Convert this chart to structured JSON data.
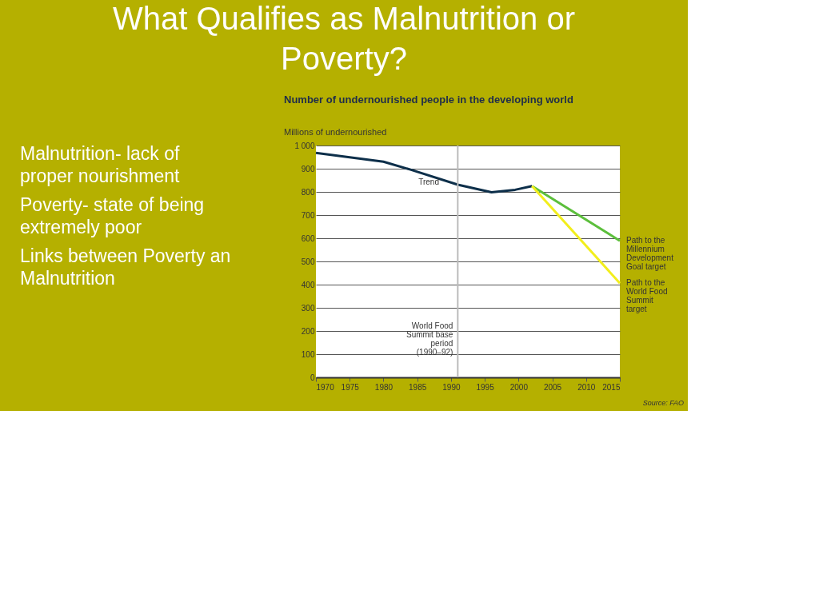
{
  "chart_data": {
    "type": "line",
    "title": "What Qualifies as Malnutrition or Poverty?",
    "subtitle": "Number of undernourished people in the developing world",
    "ylabel": "Millions of undernourished",
    "xlim": [
      1970,
      2015
    ],
    "xticks": [
      1970,
      1975,
      1980,
      1985,
      1990,
      1995,
      2000,
      2005,
      2010,
      2015
    ],
    "ylim": [
      0,
      1000
    ],
    "yticks": [
      0,
      100,
      200,
      300,
      400,
      500,
      600,
      700,
      800,
      900,
      {
        "value": 1000,
        "label": "1 000"
      }
    ],
    "grid": "y",
    "marker": "none",
    "line_style": "solid",
    "series": [
      {
        "name": "Trend",
        "color": "#0d2f4a",
        "x": [
          1970,
          1980,
          1984,
          1991,
          1996,
          1999.5,
          2002
        ],
        "values": [
          968,
          930,
          896,
          831,
          798,
          809,
          825
        ]
      },
      {
        "name": "Path to the Millennium Development Goal target",
        "color": "#5cbf3c",
        "x": [
          2002,
          2015
        ],
        "values": [
          825,
          589
        ]
      },
      {
        "name": "Path to the World Food Summit target",
        "color": "#f2ee1c",
        "x": [
          2002,
          2015
        ],
        "values": [
          825,
          406
        ]
      }
    ],
    "ref_lines": [
      {
        "axis": "x",
        "value": 1991,
        "label": "World Food Summit base period (1990–92)",
        "color": "#bbbbbb"
      }
    ],
    "annotations": [
      "Malnutrition- lack of proper nourishment",
      "Poverty- state of being extremely poor",
      "Links between Poverty an Malnutrition",
      "Source: FAO"
    ]
  }
}
